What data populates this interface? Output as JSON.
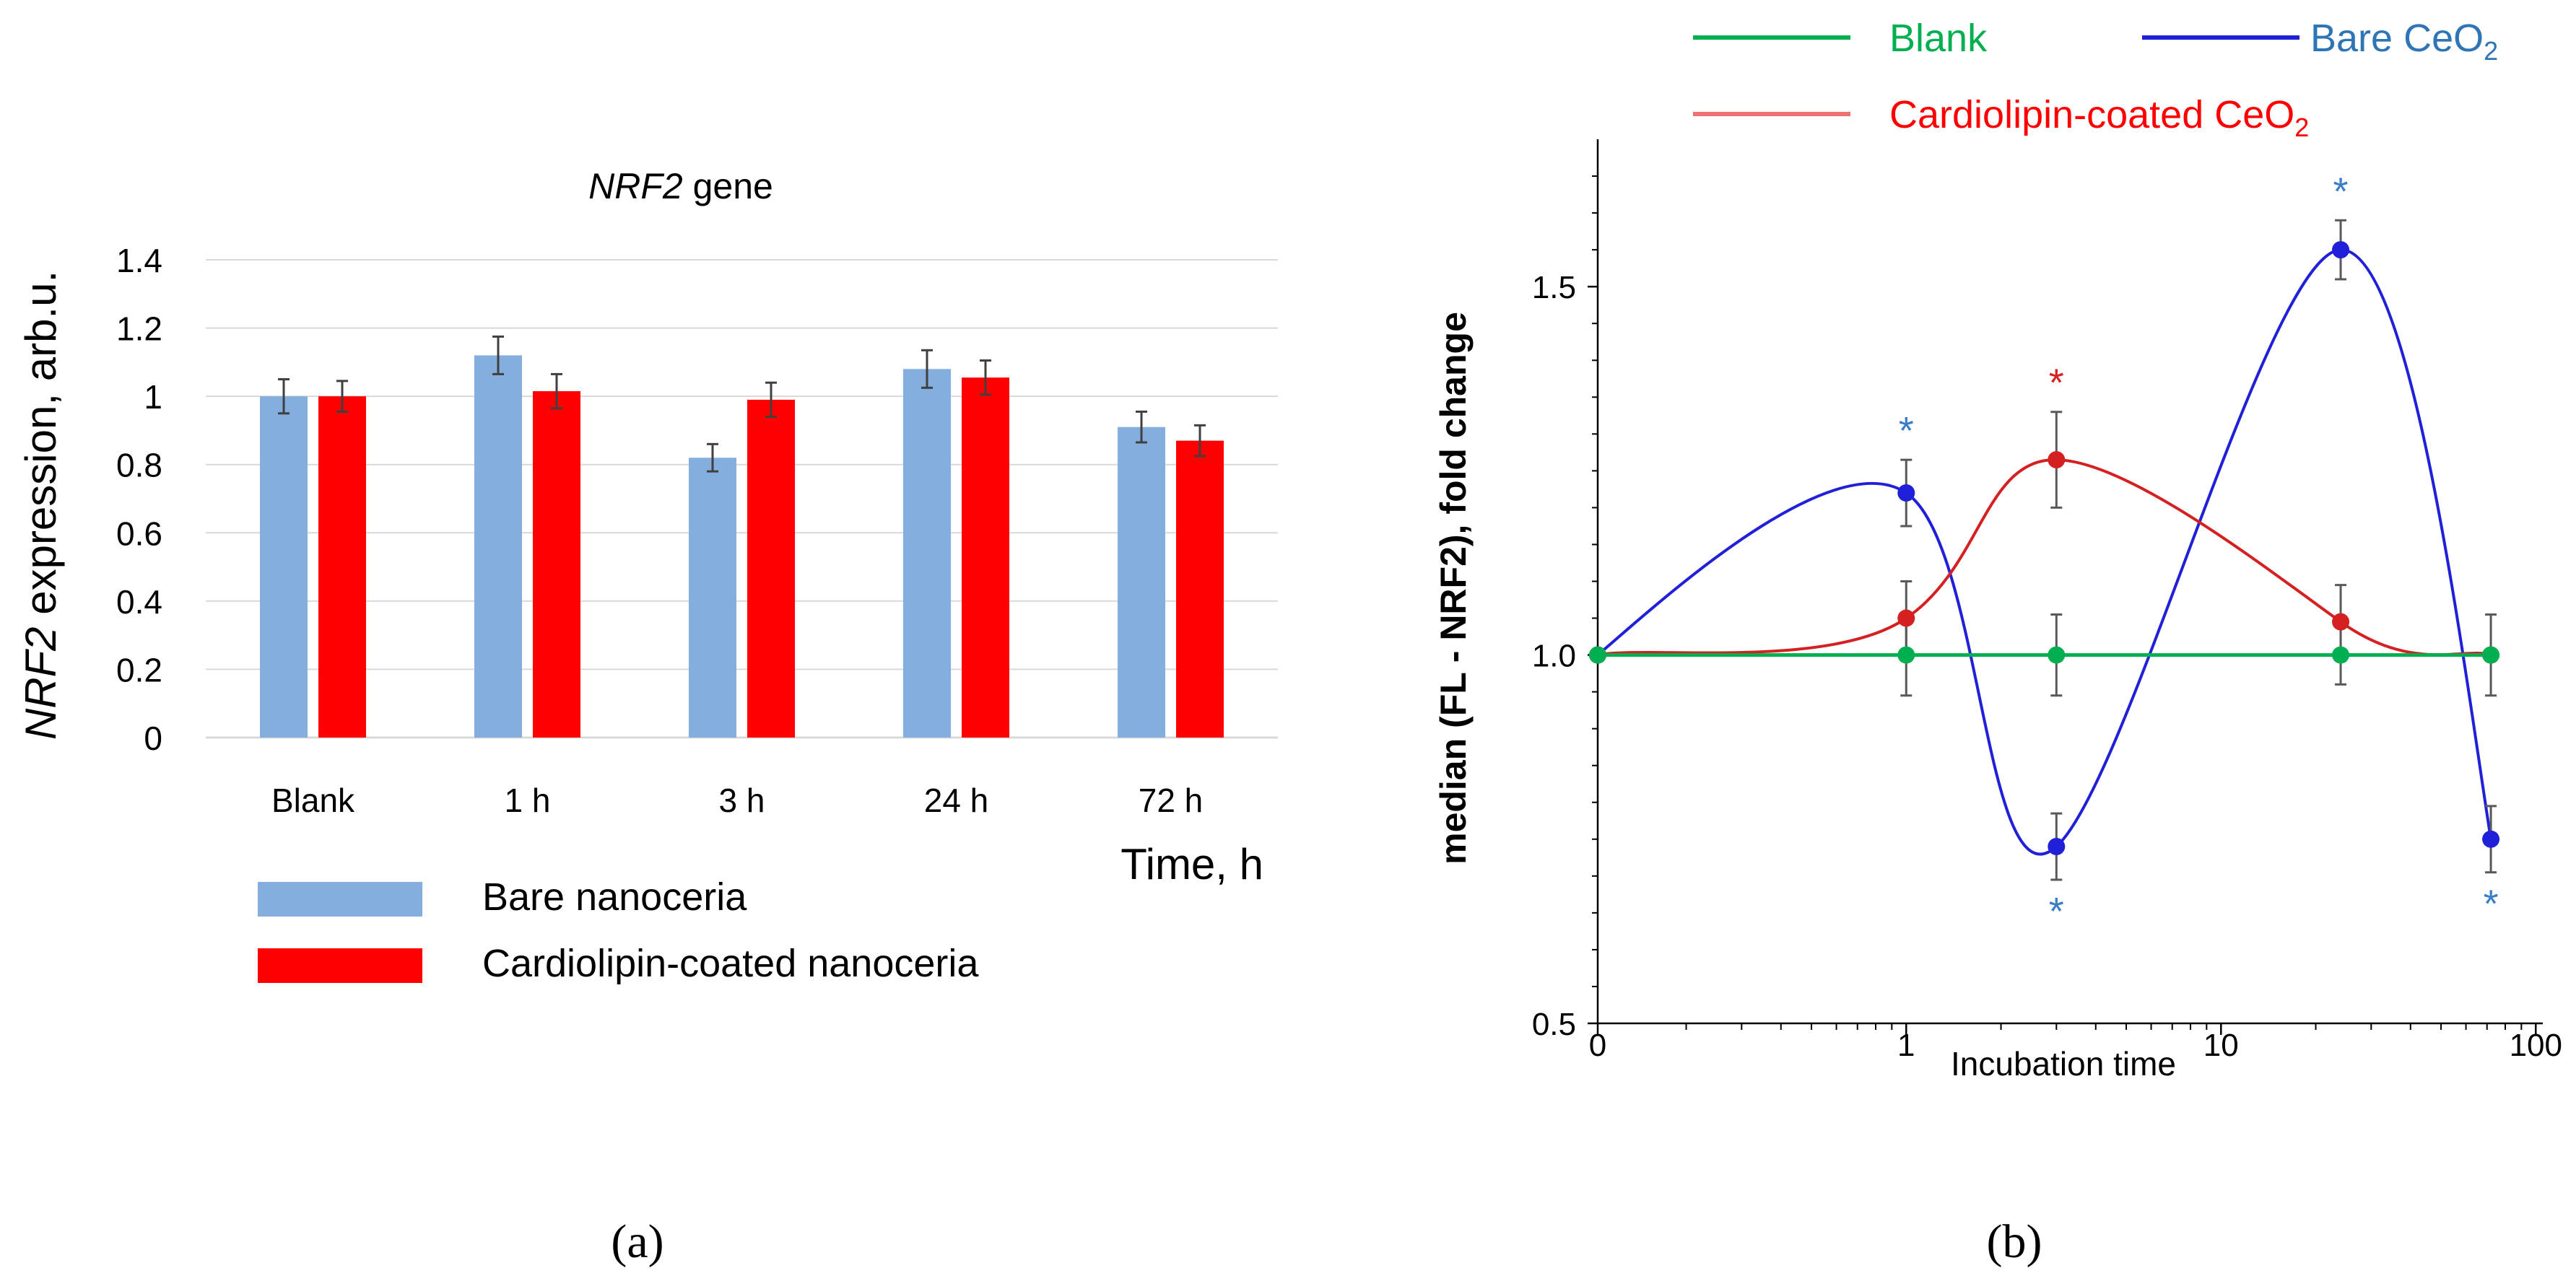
{
  "chart_data": [
    {
      "panel_label": "(a)",
      "type": "bar",
      "title": "gene",
      "title_italic": "NRF2",
      "ylabel": "expression, arb.u.",
      "ylabel_italic": "NRF2",
      "xlabel": "Time, h",
      "ylim": [
        0,
        1.4
      ],
      "yticks": [
        "0",
        "0.2",
        "0.4",
        "0.6",
        "0.8",
        "1",
        "1.2",
        "1.4"
      ],
      "grid": true,
      "categories": [
        "Blank",
        "1 h",
        "3 h",
        "24 h",
        "72 h"
      ],
      "series": [
        {
          "name": "Bare nanoceria",
          "color": "#83aede",
          "values": [
            1.0,
            1.12,
            0.82,
            1.08,
            0.91
          ],
          "errors": [
            0.05,
            0.055,
            0.04,
            0.055,
            0.045
          ]
        },
        {
          "name": "Cardiolipin-coated nanoceria",
          "color": "#ff0000",
          "values": [
            1.0,
            1.015,
            0.99,
            1.055,
            0.87
          ],
          "errors": [
            0.045,
            0.05,
            0.05,
            0.05,
            0.045
          ]
        }
      ],
      "legend": "bottom-left"
    },
    {
      "panel_label": "(b)",
      "type": "line",
      "xscale": "log (0 shown at origin)",
      "ylabel": "median (FL - NRF2), fold change",
      "xlabel": "Incubation time",
      "ylim": [
        0.5,
        1.7
      ],
      "yticks": [
        "0.5",
        "1.0",
        "1.5"
      ],
      "xticks": [
        "0",
        "1",
        "10",
        "100"
      ],
      "x": [
        0,
        1,
        3,
        24,
        72
      ],
      "series": [
        {
          "name": "Blank",
          "color": "#00b050",
          "values": [
            1.0,
            1.0,
            1.0,
            1.0,
            1.0
          ],
          "errors": [
            0,
            0.055,
            0.055,
            0.04,
            0.055
          ],
          "significant": [
            false,
            false,
            false,
            false,
            false
          ]
        },
        {
          "name": "Bare CeO",
          "name_sub": "2",
          "color": "#2020d8",
          "values": [
            1.0,
            1.22,
            0.74,
            1.55,
            0.75
          ],
          "errors": [
            0,
            0.045,
            0.045,
            0.04,
            0.045
          ],
          "significant": [
            false,
            true,
            true,
            true,
            true
          ]
        },
        {
          "name": "Cardiolipin-coated CeO",
          "name_sub": "2",
          "color": "#d42020",
          "values": [
            1.0,
            1.05,
            1.265,
            1.045,
            1.0
          ],
          "errors": [
            0,
            0.05,
            0.065,
            0.05,
            0
          ],
          "significant": [
            false,
            false,
            true,
            false,
            false
          ]
        }
      ],
      "significance_marker": "*",
      "legend": "top"
    }
  ]
}
